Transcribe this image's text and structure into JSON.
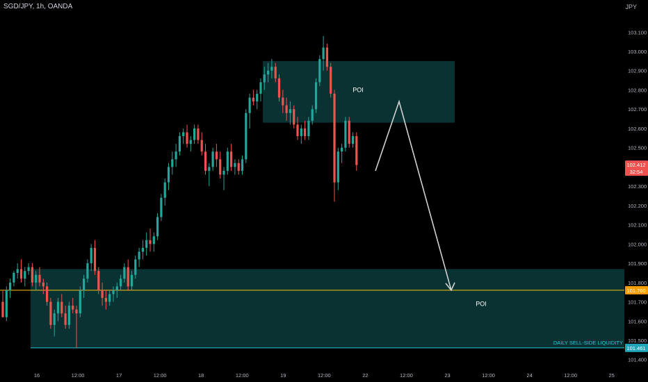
{
  "header": {
    "symbol": "SGD/JPY, 1h, OANDA",
    "currency": "JPY"
  },
  "colors": {
    "background": "#000000",
    "bull": "#26a69a",
    "bear": "#ef5350",
    "zone_fill": "#0c3b3c",
    "level_line": "#f5c518",
    "liquidity_line": "#26c6da",
    "projection_arrow": "#d0d0d0",
    "axis_text": "#b2b5be"
  },
  "chart_data": {
    "type": "candlestick",
    "ylim": [
      101.44,
      103.18
    ],
    "y_ticks": [
      "103.100",
      "103.000",
      "102.900",
      "102.800",
      "102.700",
      "102.600",
      "102.500",
      "102.300",
      "102.200",
      "102.100",
      "102.000",
      "101.900",
      "101.800",
      "101.700",
      "101.600",
      "101.500",
      "101.400"
    ],
    "x_ticks": [
      "16",
      "12:00",
      "17",
      "12:00",
      "18",
      "12:00",
      "19",
      "12:00",
      "22",
      "12:00",
      "23",
      "12:00",
      "24",
      "12:00",
      "25"
    ],
    "candles": [
      [
        101.7,
        101.76,
        101.62,
        101.62
      ],
      [
        101.62,
        101.78,
        101.6,
        101.76
      ],
      [
        101.76,
        101.82,
        101.72,
        101.8
      ],
      [
        101.8,
        101.86,
        101.78,
        101.85
      ],
      [
        101.85,
        101.9,
        101.82,
        101.87
      ],
      [
        101.87,
        101.92,
        101.8,
        101.82
      ],
      [
        101.82,
        101.88,
        101.78,
        101.86
      ],
      [
        101.86,
        101.9,
        101.84,
        101.88
      ],
      [
        101.88,
        101.9,
        101.78,
        101.8
      ],
      [
        101.8,
        101.86,
        101.76,
        101.84
      ],
      [
        101.84,
        101.88,
        101.78,
        101.8
      ],
      [
        101.8,
        101.82,
        101.74,
        101.78
      ],
      [
        101.78,
        101.8,
        101.68,
        101.7
      ],
      [
        101.7,
        101.72,
        101.56,
        101.58
      ],
      [
        101.58,
        101.66,
        101.52,
        101.64
      ],
      [
        101.64,
        101.72,
        101.6,
        101.7
      ],
      [
        101.7,
        101.74,
        101.62,
        101.64
      ],
      [
        101.64,
        101.68,
        101.56,
        101.58
      ],
      [
        101.58,
        101.7,
        101.56,
        101.68
      ],
      [
        101.68,
        101.72,
        101.64,
        101.66
      ],
      [
        101.66,
        101.68,
        101.46,
        101.64
      ],
      [
        101.64,
        101.78,
        101.62,
        101.76
      ],
      [
        101.76,
        101.84,
        101.72,
        101.82
      ],
      [
        101.82,
        101.92,
        101.8,
        101.9
      ],
      [
        101.9,
        102.0,
        101.86,
        101.98
      ],
      [
        101.98,
        102.02,
        101.84,
        101.86
      ],
      [
        101.86,
        101.88,
        101.74,
        101.76
      ],
      [
        101.76,
        101.8,
        101.68,
        101.72
      ],
      [
        101.72,
        101.76,
        101.66,
        101.7
      ],
      [
        101.7,
        101.76,
        101.68,
        101.74
      ],
      [
        101.74,
        101.78,
        101.7,
        101.76
      ],
      [
        101.76,
        101.8,
        101.72,
        101.78
      ],
      [
        101.78,
        101.84,
        101.76,
        101.82
      ],
      [
        101.82,
        101.9,
        101.8,
        101.88
      ],
      [
        101.88,
        101.92,
        101.76,
        101.78
      ],
      [
        101.78,
        101.86,
        101.76,
        101.84
      ],
      [
        101.84,
        101.94,
        101.82,
        101.92
      ],
      [
        101.92,
        101.98,
        101.88,
        101.96
      ],
      [
        101.96,
        102.02,
        101.92,
        101.98
      ],
      [
        101.98,
        102.06,
        101.94,
        102.02
      ],
      [
        102.02,
        102.08,
        101.96,
        102.0
      ],
      [
        102.0,
        102.06,
        101.96,
        102.04
      ],
      [
        102.04,
        102.16,
        102.02,
        102.14
      ],
      [
        102.14,
        102.26,
        102.12,
        102.24
      ],
      [
        102.24,
        102.34,
        102.2,
        102.32
      ],
      [
        102.32,
        102.42,
        102.28,
        102.4
      ],
      [
        102.4,
        102.48,
        102.36,
        102.44
      ],
      [
        102.44,
        102.52,
        102.4,
        102.48
      ],
      [
        102.48,
        102.58,
        102.46,
        102.56
      ],
      [
        102.56,
        102.6,
        102.52,
        102.58
      ],
      [
        102.58,
        102.62,
        102.5,
        102.52
      ],
      [
        102.52,
        102.56,
        102.48,
        102.54
      ],
      [
        102.54,
        102.62,
        102.52,
        102.6
      ],
      [
        102.6,
        102.62,
        102.52,
        102.54
      ],
      [
        102.54,
        102.58,
        102.46,
        102.48
      ],
      [
        102.48,
        102.52,
        102.36,
        102.38
      ],
      [
        102.38,
        102.42,
        102.3,
        102.4
      ],
      [
        102.4,
        102.5,
        102.38,
        102.48
      ],
      [
        102.48,
        102.52,
        102.4,
        102.44
      ],
      [
        102.44,
        102.48,
        102.34,
        102.36
      ],
      [
        102.36,
        102.4,
        102.28,
        102.38
      ],
      [
        102.38,
        102.5,
        102.36,
        102.48
      ],
      [
        102.48,
        102.52,
        102.38,
        102.4
      ],
      [
        102.4,
        102.44,
        102.36,
        102.42
      ],
      [
        102.42,
        102.44,
        102.36,
        102.38
      ],
      [
        102.38,
        102.46,
        102.36,
        102.44
      ],
      [
        102.44,
        102.7,
        102.42,
        102.68
      ],
      [
        102.68,
        102.78,
        102.6,
        102.76
      ],
      [
        102.76,
        102.8,
        102.72,
        102.74
      ],
      [
        102.74,
        102.8,
        102.7,
        102.78
      ],
      [
        102.78,
        102.86,
        102.74,
        102.84
      ],
      [
        102.84,
        102.92,
        102.8,
        102.88
      ],
      [
        102.88,
        102.94,
        102.84,
        102.9
      ],
      [
        102.9,
        102.96,
        102.86,
        102.92
      ],
      [
        102.92,
        102.94,
        102.84,
        102.86
      ],
      [
        102.86,
        102.88,
        102.74,
        102.76
      ],
      [
        102.76,
        102.8,
        102.68,
        102.72
      ],
      [
        102.72,
        102.76,
        102.64,
        102.68
      ],
      [
        102.68,
        102.74,
        102.62,
        102.7
      ],
      [
        102.7,
        102.72,
        102.6,
        102.62
      ],
      [
        102.62,
        102.66,
        102.54,
        102.56
      ],
      [
        102.56,
        102.62,
        102.52,
        102.6
      ],
      [
        102.6,
        102.64,
        102.54,
        102.56
      ],
      [
        102.56,
        102.66,
        102.54,
        102.64
      ],
      [
        102.64,
        102.72,
        102.62,
        102.7
      ],
      [
        102.7,
        102.86,
        102.68,
        102.84
      ],
      [
        102.84,
        102.98,
        102.82,
        102.96
      ],
      [
        102.96,
        103.08,
        102.9,
        103.02
      ],
      [
        103.02,
        103.04,
        102.9,
        102.92
      ],
      [
        102.92,
        102.94,
        102.76,
        102.78
      ],
      [
        102.78,
        102.8,
        102.22,
        102.32
      ],
      [
        102.32,
        102.5,
        102.28,
        102.48
      ],
      [
        102.48,
        102.52,
        102.42,
        102.5
      ],
      [
        102.5,
        102.66,
        102.48,
        102.64
      ],
      [
        102.64,
        102.66,
        102.5,
        102.52
      ],
      [
        102.52,
        102.58,
        102.5,
        102.56
      ],
      [
        102.56,
        102.58,
        102.38,
        102.41
      ]
    ]
  },
  "price_axis": {
    "current_price": "102.412",
    "countdown": "32:54",
    "level_price": "101.760",
    "liquidity_price": "101.461"
  },
  "zones": {
    "upper": {
      "label": "POI",
      "top": 102.95,
      "bottom": 102.63
    },
    "lower": {
      "label": "POI",
      "top": 101.87,
      "bottom": 101.461
    }
  },
  "levels": {
    "horizontal": 101.76,
    "liquidity": 101.461,
    "liquidity_label": "DAILY SELL-SIDE LIQUIDITY"
  },
  "projection": {
    "points": [
      [
        102.38
      ],
      [
        102.74
      ],
      [
        101.76
      ]
    ]
  }
}
